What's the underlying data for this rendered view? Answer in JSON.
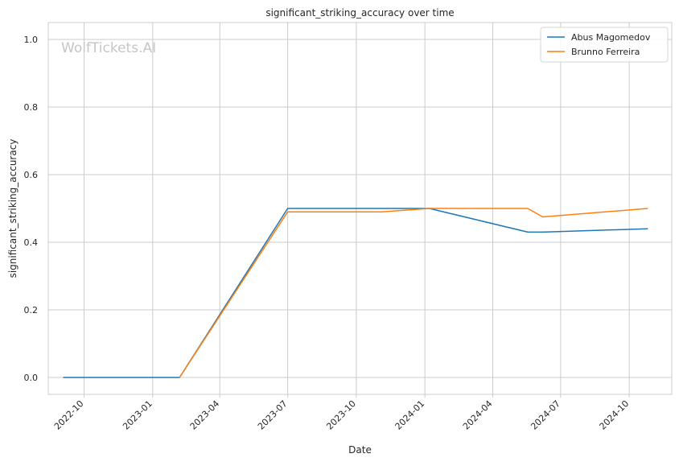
{
  "chart_data": {
    "type": "line",
    "title": "significant_striking_accuracy over time",
    "xlabel": "Date",
    "ylabel": "significant_striking_accuracy",
    "watermark": "WolfTickets.AI",
    "grid": true,
    "legend_position": "top-right",
    "xlim": [
      "2022-08-14",
      "2024-11-27"
    ],
    "ylim": [
      -0.05,
      1.05
    ],
    "x_ticks": [
      "2022-10",
      "2023-01",
      "2023-04",
      "2023-07",
      "2023-10",
      "2024-01",
      "2024-04",
      "2024-07",
      "2024-10"
    ],
    "y_ticks": [
      "0.0",
      "0.2",
      "0.4",
      "0.6",
      "0.8",
      "1.0"
    ],
    "series": [
      {
        "name": "Abus Magomedov",
        "color": "#1f77b4",
        "x": [
          "2022-09-03",
          "2023-02-06",
          "2023-07-01",
          "2024-01-07",
          "2024-05-18",
          "2024-06-07",
          "2024-10-26"
        ],
        "y": [
          0.0,
          0.0,
          0.5,
          0.5,
          0.43,
          0.43,
          0.44
        ]
      },
      {
        "name": "Brunno Ferreira",
        "color": "#ff7f0e",
        "x": [
          "2023-02-06",
          "2023-07-01",
          "2023-11-04",
          "2024-01-07",
          "2024-05-18",
          "2024-06-07",
          "2024-10-26"
        ],
        "y": [
          0.0,
          0.49,
          0.49,
          0.5,
          0.5,
          0.475,
          0.5
        ]
      }
    ]
  }
}
